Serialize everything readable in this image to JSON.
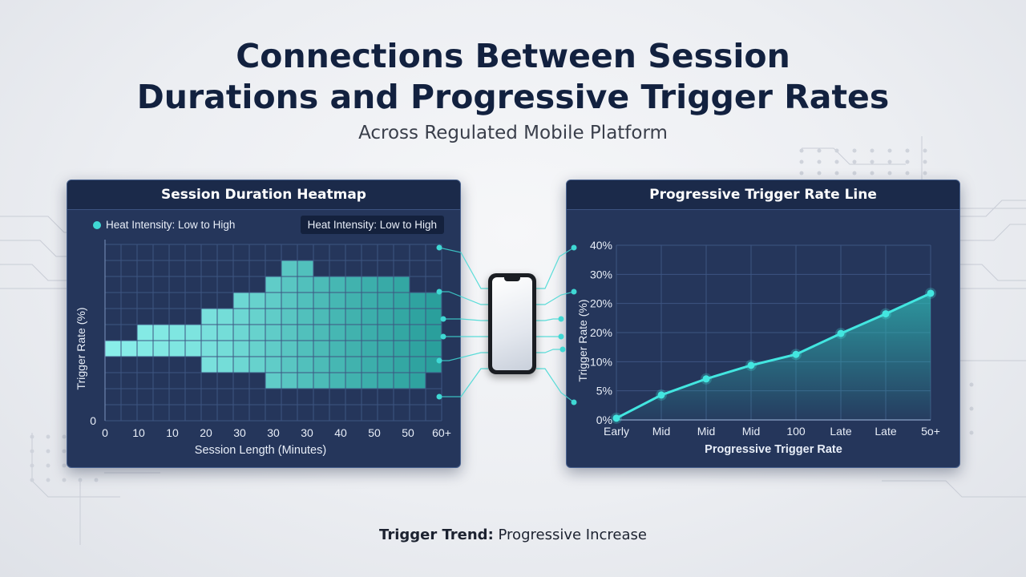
{
  "header": {
    "title_line1": "Connections Between Session",
    "title_line2": "Durations and Progressive Trigger Rates",
    "subtitle": "Across Regulated Mobile Platform"
  },
  "heatmap_panel": {
    "title": "Session Duration Heatmap",
    "legend_label": "Heat Intensity: Low to High",
    "legend_badge": "Heat Intensity: Low to High"
  },
  "line_panel": {
    "title": "Progressive Trigger Rate Line"
  },
  "footer": {
    "label": "Trigger Trend:",
    "value": "Progressive Increase"
  },
  "colors": {
    "accent": "#3fd8d4",
    "title": "#12213f",
    "panel_bg": "#25365b",
    "panel_header": "#1b2a4a"
  },
  "icons": [
    "smartphone-icon",
    "legend-dot-icon"
  ],
  "chart_data": [
    {
      "type": "heatmap",
      "title": "Session Duration Heatmap",
      "xlabel": "Session Length (Minutes)",
      "ylabel": "Trigger Rate (%)",
      "x_tick_labels": [
        "0",
        "10",
        "10",
        "20",
        "30",
        "30",
        "30",
        "40",
        "50",
        "50",
        "60+"
      ],
      "y_tick_labels": [
        "0"
      ],
      "intensity_scale": "low to high (light aqua to dark teal)",
      "column_extents_rows_from_bottom": [
        [
          4,
          5
        ],
        [
          4,
          5
        ],
        [
          4,
          6
        ],
        [
          4,
          6
        ],
        [
          4,
          6
        ],
        [
          4,
          6
        ],
        [
          3,
          7
        ],
        [
          3,
          7
        ],
        [
          3,
          8
        ],
        [
          3,
          8
        ],
        [
          2,
          9
        ],
        [
          2,
          10
        ],
        [
          2,
          10
        ],
        [
          2,
          9
        ],
        [
          2,
          9
        ],
        [
          2,
          9
        ],
        [
          2,
          9
        ],
        [
          2,
          9
        ],
        [
          2,
          9
        ],
        [
          2,
          8
        ],
        [
          3,
          8
        ]
      ],
      "intensity": [
        0.05,
        0.07,
        0.1,
        0.12,
        0.14,
        0.16,
        0.2,
        0.24,
        0.3,
        0.36,
        0.42,
        0.48,
        0.55,
        0.6,
        0.65,
        0.7,
        0.74,
        0.78,
        0.82,
        0.86,
        0.9
      ],
      "grid": true
    },
    {
      "type": "line",
      "title": "Progressive Trigger Rate Line",
      "xlabel": "Progressive Trigger Rate",
      "ylabel": "Trigger Rate (%)",
      "x_tick_labels": [
        "Early",
        "Mid",
        "Mid",
        "Mid",
        "100",
        "Late",
        "Late",
        "5o+"
      ],
      "y_tick_labels": [
        "0%",
        "5%",
        "10%",
        "20%",
        "20%",
        "30%",
        "40%"
      ],
      "series": [
        {
          "values": [
            0.4,
            5.7,
            9.4,
            12.5,
            15.0,
            19.8,
            24.3,
            29.0
          ]
        }
      ],
      "ylim": [
        0,
        40
      ],
      "fill": "area under line",
      "grid": true
    }
  ]
}
